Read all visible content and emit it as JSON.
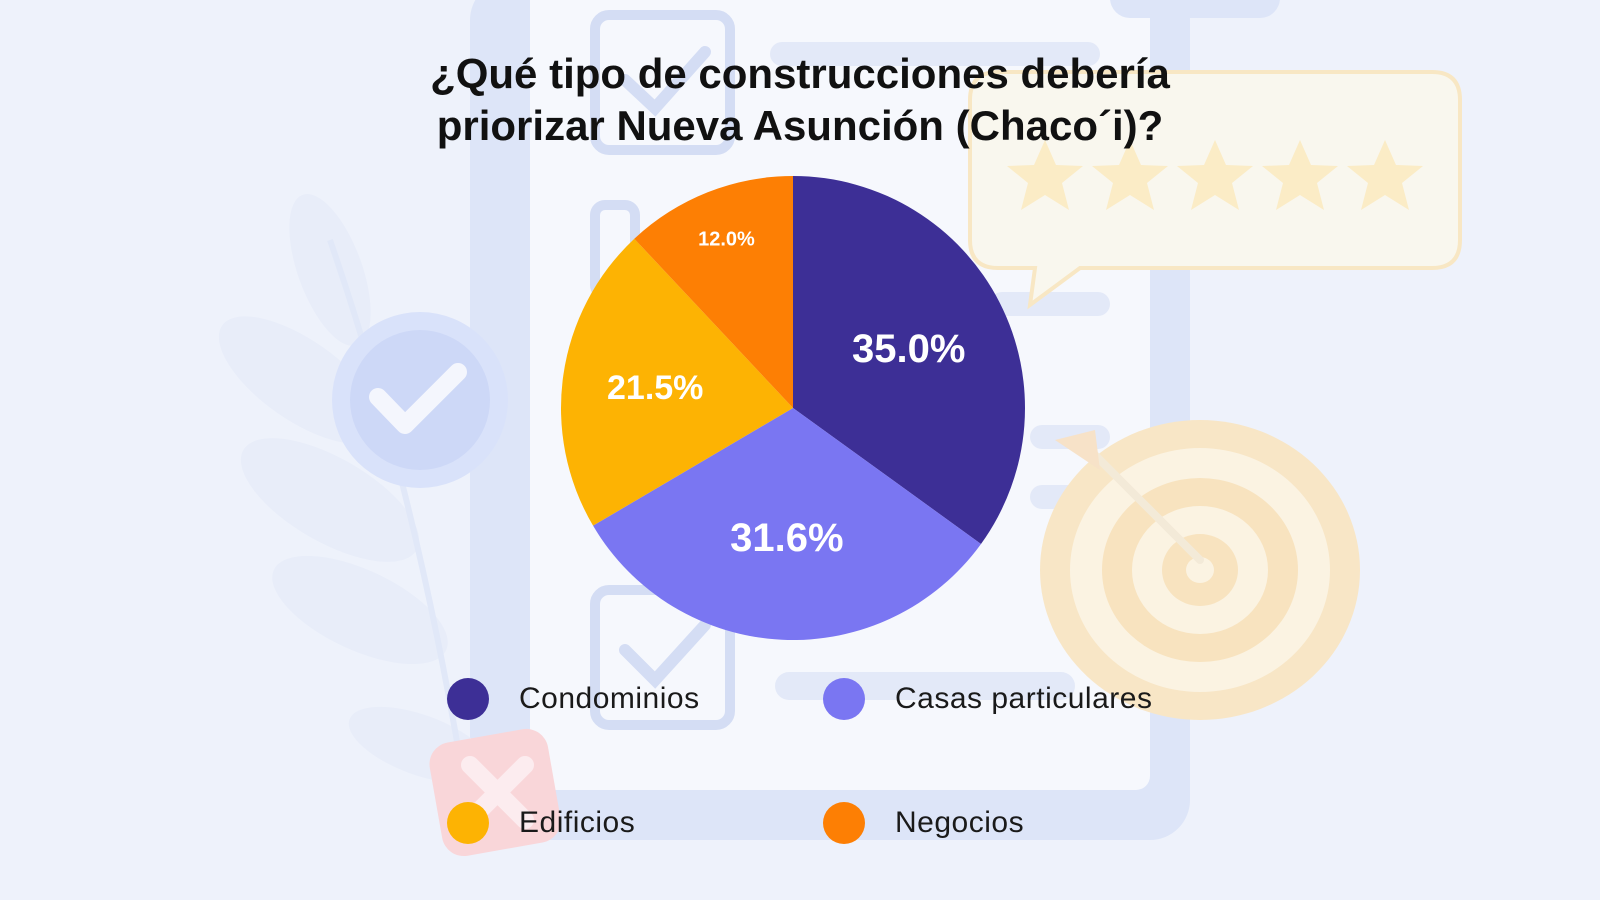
{
  "colors": {
    "background": "#eef2fb",
    "condominios": "#3d2f96",
    "casas": "#7a76f2",
    "edificios": "#fdb303",
    "negocios": "#fd7f04"
  },
  "chart_data": {
    "type": "pie",
    "title": "¿Qué tipo de construcciones debería priorizar Nueva Asunción (Chaco´i)?",
    "title_lines": [
      "¿Qué tipo de construcciones debería",
      "priorizar Nueva Asunción (Chaco´i)?"
    ],
    "categories": [
      "Condominios",
      "Casas particulares",
      "Edificios",
      "Negocios"
    ],
    "values": [
      35.0,
      31.6,
      21.5,
      12.0
    ],
    "value_labels": [
      "35.0%",
      "31.6%",
      "21.5%",
      "12.0%"
    ],
    "colors": [
      "#3d2f96",
      "#7a76f2",
      "#fdb303",
      "#fd7f04"
    ],
    "legend": {
      "placement": "bottom",
      "items": [
        {
          "label": "Condominios",
          "color": "#3d2f96"
        },
        {
          "label": "Casas particulares",
          "color": "#7a76f2"
        },
        {
          "label": "Edificios",
          "color": "#fdb303"
        },
        {
          "label": "Negocios",
          "color": "#fd7f04"
        }
      ]
    }
  }
}
